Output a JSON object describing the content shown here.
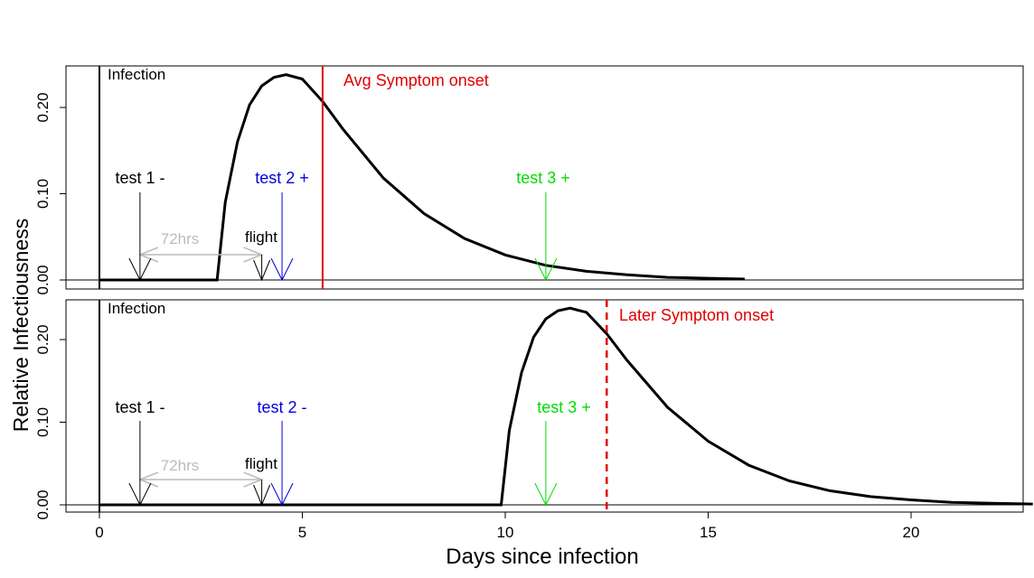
{
  "colors": {
    "curve": "#000000",
    "symptom": "#e00000",
    "test1": "#000000",
    "test2": "#0000dd",
    "test3": "#00dd00",
    "window": "#bbbbbb",
    "flight": "#000000",
    "axis": "#000000"
  },
  "chart_data": [
    {
      "type": "line",
      "panel": "top",
      "ylabel": "Relative Infectiousness",
      "xlabel": "Days since infection",
      "xlim": [
        -0.85,
        23
      ],
      "ylim": [
        -0.01,
        0.25
      ],
      "yticks": [
        0.0,
        0.1,
        0.2
      ],
      "ytick_labels": [
        "0.00",
        "0.10",
        "0.20"
      ],
      "series": [
        {
          "x": [
            0.0,
            2.9,
            3.1,
            3.4,
            3.7,
            4.0,
            4.3,
            4.6,
            5.0,
            5.5,
            6.0,
            7.0,
            8.0,
            9.0,
            10.0,
            11.0,
            12.0,
            13.0,
            14.0,
            15.0,
            15.9
          ],
          "y": [
            0.0,
            0.0,
            0.09,
            0.16,
            0.203,
            0.225,
            0.235,
            0.238,
            0.233,
            0.207,
            0.175,
            0.118,
            0.077,
            0.048,
            0.029,
            0.017,
            0.01,
            0.006,
            0.003,
            0.002,
            0.001
          ]
        }
      ],
      "annotations": {
        "infection": {
          "x": 0,
          "label": "Infection"
        },
        "symptom": {
          "x": 5.5,
          "label": "Avg Symptom onset",
          "style": "solid"
        },
        "tests": [
          {
            "x": 1,
            "label": "test 1 -",
            "color": "#000000"
          },
          {
            "x": 4.5,
            "label": "test 2 +",
            "color": "#0000dd"
          },
          {
            "x": 11,
            "label": "test 3 +",
            "color": "#00dd00"
          }
        ],
        "window": {
          "from": 1,
          "to": 4,
          "label": "72hrs"
        },
        "flight": {
          "x": 4,
          "label": "flight"
        }
      }
    },
    {
      "type": "line",
      "panel": "bottom",
      "ylabel": "Relative Infectiousness",
      "xlabel": "Days since infection",
      "xlim": [
        -0.85,
        23
      ],
      "ylim": [
        -0.01,
        0.25
      ],
      "xticks": [
        0,
        5,
        10,
        15,
        20
      ],
      "xtick_labels": [
        "0",
        "5",
        "10",
        "15",
        "20"
      ],
      "yticks": [
        0.0,
        0.1,
        0.2
      ],
      "ytick_labels": [
        "0.00",
        "0.10",
        "0.20"
      ],
      "series": [
        {
          "x": [
            0.0,
            9.9,
            10.1,
            10.4,
            10.7,
            11.0,
            11.3,
            11.6,
            12.0,
            12.5,
            13.0,
            14.0,
            15.0,
            16.0,
            17.0,
            18.0,
            19.0,
            20.0,
            21.0,
            22.0,
            23.0
          ],
          "y": [
            0.0,
            0.0,
            0.09,
            0.16,
            0.203,
            0.225,
            0.235,
            0.238,
            0.233,
            0.207,
            0.175,
            0.118,
            0.077,
            0.048,
            0.029,
            0.017,
            0.01,
            0.006,
            0.003,
            0.002,
            0.001
          ]
        }
      ],
      "annotations": {
        "infection": {
          "x": 0,
          "label": "Infection"
        },
        "symptom": {
          "x": 12.5,
          "label": "Later Symptom onset",
          "style": "dashed"
        },
        "tests": [
          {
            "x": 1,
            "label": "test 1 -",
            "color": "#000000"
          },
          {
            "x": 4.5,
            "label": "test 2 -",
            "color": "#0000dd"
          },
          {
            "x": 11,
            "label": "test 3 +",
            "color": "#00dd00"
          }
        ],
        "window": {
          "from": 1,
          "to": 4,
          "label": "72hrs"
        },
        "flight": {
          "x": 4,
          "label": "flight"
        }
      }
    }
  ]
}
